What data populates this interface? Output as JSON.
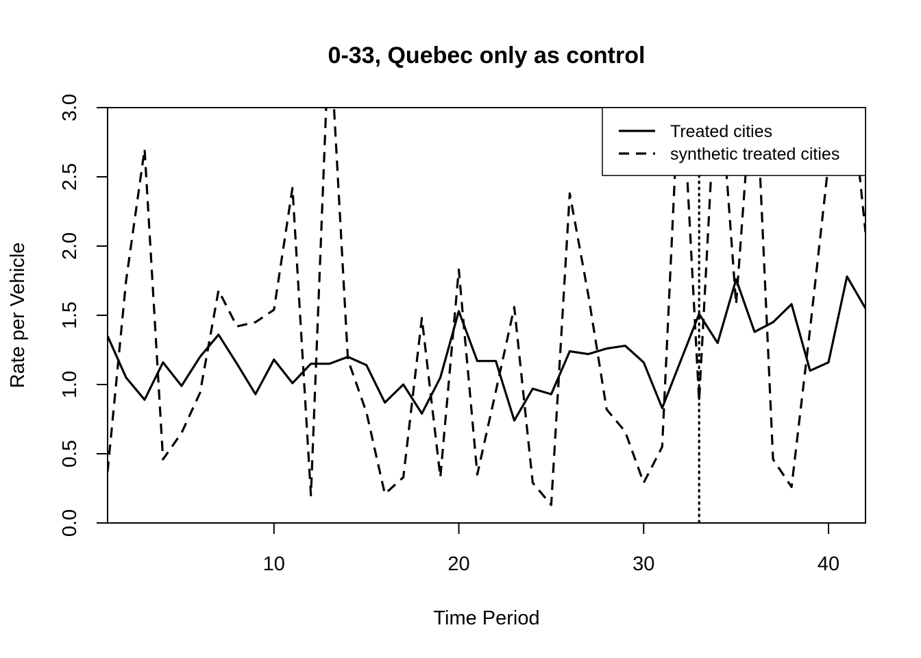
{
  "chart_data": {
    "type": "line",
    "title": "0-33, Quebec only as control",
    "xlabel": "Time Period",
    "ylabel": "Rate per Vehicle",
    "xlim": [
      1,
      42
    ],
    "ylim": [
      0,
      3.0
    ],
    "x_ticks": [
      10,
      20,
      30,
      40
    ],
    "y_ticks": [
      "0.0",
      "0.5",
      "1.0",
      "1.5",
      "2.0",
      "2.5",
      "3.0"
    ],
    "legend_position": "top-right",
    "reference_line_x": 33,
    "x": [
      1,
      2,
      3,
      4,
      5,
      6,
      7,
      8,
      9,
      10,
      11,
      12,
      13,
      14,
      15,
      16,
      17,
      18,
      19,
      20,
      21,
      22,
      23,
      24,
      25,
      26,
      27,
      28,
      29,
      30,
      31,
      32,
      33,
      34,
      35,
      36,
      37,
      38,
      39,
      40,
      41,
      42
    ],
    "series": [
      {
        "name": "Treated cities",
        "style": "solid",
        "values": [
          1.35,
          1.05,
          0.89,
          1.16,
          0.99,
          1.2,
          1.36,
          1.15,
          0.93,
          1.18,
          1.01,
          1.15,
          1.15,
          1.2,
          1.14,
          0.87,
          1.0,
          0.79,
          1.05,
          1.53,
          1.17,
          1.17,
          0.74,
          0.97,
          0.93,
          1.24,
          1.22,
          1.26,
          1.28,
          1.16,
          0.83,
          1.17,
          1.51,
          1.3,
          1.76,
          1.38,
          1.45,
          1.58,
          1.1,
          1.16,
          1.78,
          1.55
        ]
      },
      {
        "name": "synthetic treated cities",
        "style": "dashed",
        "values": [
          0.37,
          1.75,
          2.7,
          0.46,
          0.65,
          0.94,
          1.68,
          1.42,
          1.45,
          1.54,
          2.42,
          0.2,
          3.6,
          1.18,
          0.8,
          0.21,
          0.33,
          1.48,
          0.33,
          1.83,
          0.35,
          0.95,
          1.56,
          0.29,
          0.13,
          2.38,
          1.65,
          0.82,
          0.66,
          0.29,
          0.55,
          3.4,
          0.88,
          3.4,
          1.58,
          3.4,
          0.46,
          0.26,
          1.4,
          2.6,
          3.4,
          2.1
        ]
      }
    ]
  }
}
